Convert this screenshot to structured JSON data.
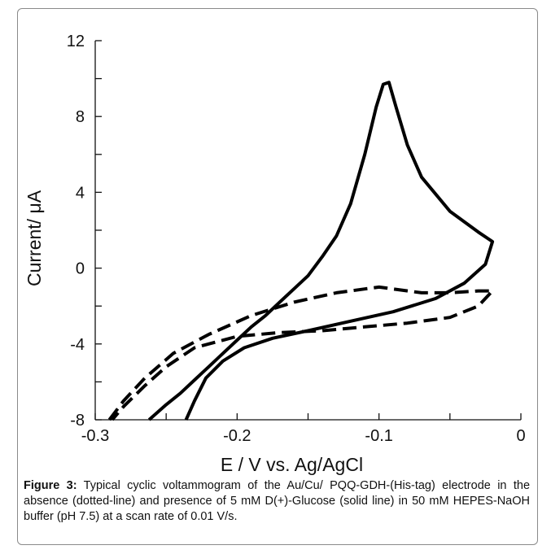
{
  "chart_data": {
    "type": "line",
    "xlabel": "E / V vs. Ag/AgCl",
    "ylabel": "Current/ μA",
    "xlim": [
      -0.3,
      0
    ],
    "ylim": [
      -8,
      12
    ],
    "x_ticks": [
      "-0.3",
      "-0.2",
      "-0.1",
      "0"
    ],
    "y_ticks": [
      "12",
      "8",
      "4",
      "0",
      "-4",
      "-8"
    ],
    "grid": false,
    "series": [
      {
        "style": "solid",
        "color": "#000000",
        "x": [
          -0.236,
          -0.23,
          -0.222,
          -0.21,
          -0.195,
          -0.175,
          -0.15,
          -0.12,
          -0.09,
          -0.06,
          -0.04,
          -0.025,
          -0.02,
          -0.03,
          -0.05,
          -0.07,
          -0.08,
          -0.088,
          -0.093,
          -0.097,
          -0.102,
          -0.11,
          -0.12,
          -0.13,
          -0.14,
          -0.15,
          -0.16,
          -0.17,
          -0.18,
          -0.19,
          -0.2,
          -0.21,
          -0.22,
          -0.23,
          -0.24,
          -0.25,
          -0.262
        ],
        "y": [
          -8.0,
          -7.0,
          -5.8,
          -4.9,
          -4.2,
          -3.7,
          -3.3,
          -2.8,
          -2.3,
          -1.6,
          -0.8,
          0.2,
          1.4,
          1.9,
          3.0,
          4.8,
          6.5,
          8.5,
          9.8,
          9.7,
          8.5,
          6.0,
          3.4,
          1.7,
          0.6,
          -0.4,
          -1.1,
          -1.8,
          -2.5,
          -3.1,
          -3.8,
          -4.5,
          -5.2,
          -5.9,
          -6.6,
          -7.2,
          -8.0
        ]
      },
      {
        "style": "dashed",
        "color": "#000000",
        "x": [
          -0.29,
          -0.28,
          -0.265,
          -0.245,
          -0.22,
          -0.19,
          -0.16,
          -0.13,
          -0.11,
          -0.1,
          -0.09,
          -0.07,
          -0.05,
          -0.03,
          -0.02,
          -0.03,
          -0.05,
          -0.08,
          -0.11,
          -0.14,
          -0.17,
          -0.2,
          -0.23,
          -0.25,
          -0.265,
          -0.28,
          -0.288
        ],
        "y": [
          -8.0,
          -7.0,
          -5.8,
          -4.5,
          -3.5,
          -2.5,
          -1.8,
          -1.3,
          -1.1,
          -1.0,
          -1.1,
          -1.3,
          -1.3,
          -1.2,
          -1.2,
          -2.0,
          -2.6,
          -2.9,
          -3.1,
          -3.3,
          -3.4,
          -3.6,
          -4.2,
          -5.2,
          -6.2,
          -7.3,
          -8.0
        ]
      }
    ]
  },
  "caption": {
    "label": "Figure 3:",
    "text": " Typical cyclic voltammogram of the Au/Cu/ PQQ-GDH-(His-tag) electrode in the absence (dotted-line) and presence of 5 mM D(+)-Glucose (solid line) in 50 mM HEPES-NaOH buffer (pH 7.5) at a scan rate of 0.01 V/s."
  }
}
